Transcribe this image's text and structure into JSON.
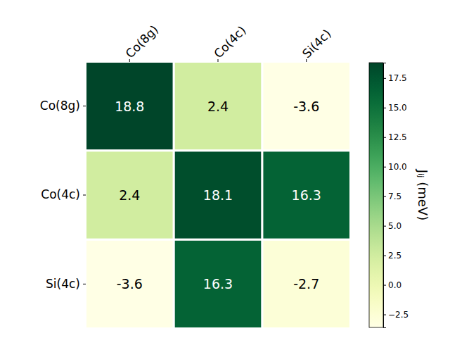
{
  "chart_data": {
    "type": "heatmap",
    "x_categories": [
      "Co(8g)",
      "Co(4c)",
      "Si(4c)"
    ],
    "y_categories": [
      "Co(8g)",
      "Co(4c)",
      "Si(4c)"
    ],
    "cells": [
      [
        18.8,
        2.4,
        -3.6
      ],
      [
        2.4,
        18.1,
        16.3
      ],
      [
        -3.6,
        16.3,
        -2.7
      ]
    ],
    "data_labels": true,
    "colorbar": {
      "label": "Jᵢⱼ (meV)",
      "range": [
        -3.6,
        18.8
      ],
      "ticks": [
        {
          "value": -2.5,
          "label": "−2.5"
        },
        {
          "value": 0,
          "label": "0.0"
        },
        {
          "value": 2.5,
          "label": "2.5"
        },
        {
          "value": 5,
          "label": "5.0"
        },
        {
          "value": 7.5,
          "label": "7.5"
        },
        {
          "value": 10,
          "label": "10.0"
        },
        {
          "value": 12.5,
          "label": "12.5"
        },
        {
          "value": 15,
          "label": "15.0"
        },
        {
          "value": 17.5,
          "label": "17.5"
        }
      ]
    }
  }
}
